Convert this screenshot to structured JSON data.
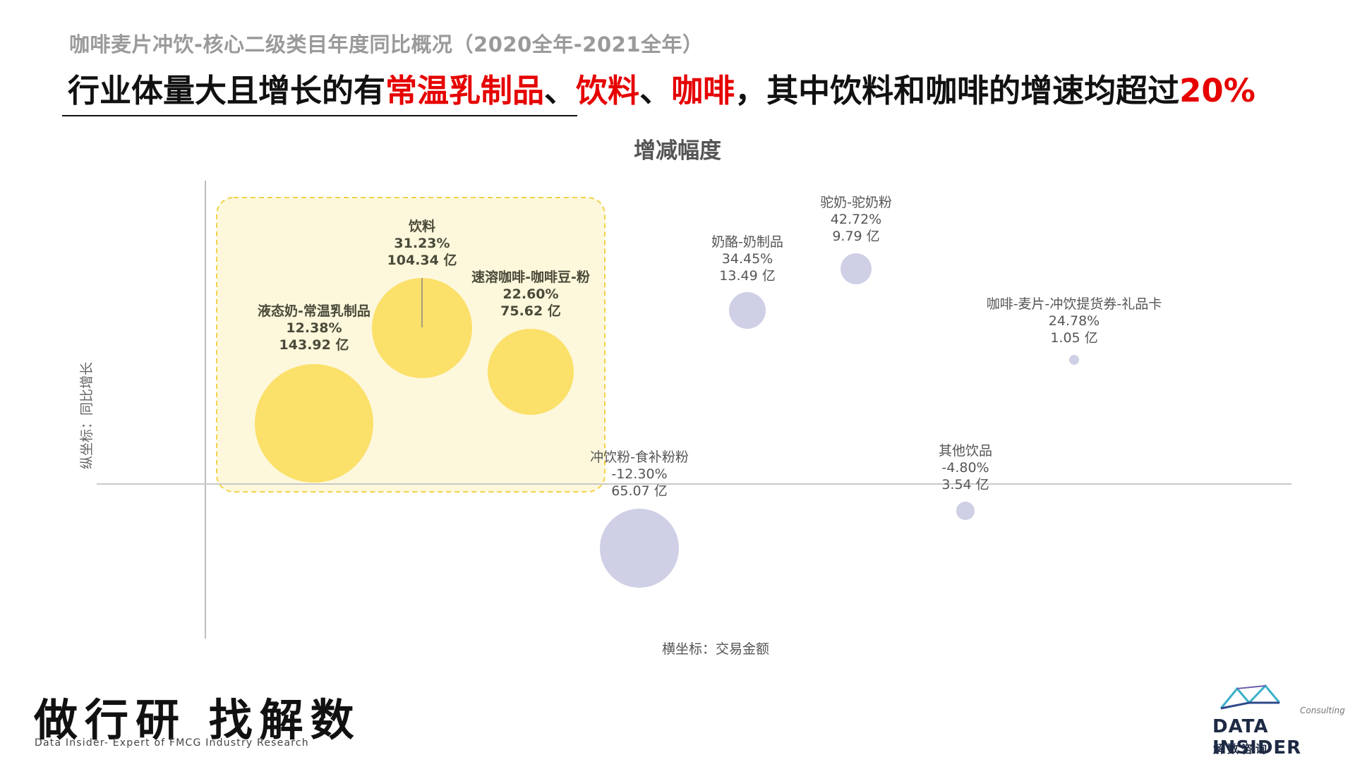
{
  "header": {
    "subtitle": "咖啡麦片冲饮-核心二级类目年度同比概况（2020全年-2021全年）",
    "headline_parts": [
      {
        "text": "行业体量大且增长的有",
        "highlight": false
      },
      {
        "text": "常温乳制品",
        "highlight": true
      },
      {
        "text": "、",
        "highlight": false
      },
      {
        "text": "饮料",
        "highlight": true
      },
      {
        "text": "、",
        "highlight": false
      },
      {
        "text": "咖啡",
        "highlight": true
      },
      {
        "text": "，其中饮料和咖啡的增速均超过",
        "highlight": false
      },
      {
        "text": "20%",
        "highlight": true
      }
    ]
  },
  "colors": {
    "highlight_text": "#e60000",
    "bubble_highlight": "#fbe06a",
    "bubble_other": "#cfcfe6",
    "highlight_box_fill": "#fdf8dc",
    "highlight_box_border": "#f2d24a"
  },
  "chart_data": {
    "type": "scatter",
    "title": "增减幅度",
    "xlabel": "横坐标：交易金额",
    "ylabel": "纵坐标：同比增长",
    "grid": false,
    "points": [
      {
        "name": "液态奶-常温乳制品",
        "growth": "12.38%",
        "amount": "143.92 亿",
        "growth_value": 12.38,
        "amount_value": 143.92,
        "highlight": true
      },
      {
        "name": "饮料",
        "growth": "31.23%",
        "amount": "104.34 亿",
        "growth_value": 31.23,
        "amount_value": 104.34,
        "highlight": true
      },
      {
        "name": "速溶咖啡-咖啡豆-粉",
        "growth": "22.60%",
        "amount": "75.62 亿",
        "growth_value": 22.6,
        "amount_value": 75.62,
        "highlight": true
      },
      {
        "name": "奶酪-奶制品",
        "growth": "34.45%",
        "amount": "13.49 亿",
        "growth_value": 34.45,
        "amount_value": 13.49,
        "highlight": false
      },
      {
        "name": "驼奶-驼奶粉",
        "growth": "42.72%",
        "amount": "9.79 亿",
        "growth_value": 42.72,
        "amount_value": 9.79,
        "highlight": false
      },
      {
        "name": "咖啡-麦片-冲饮提货券-礼品卡",
        "growth": "24.78%",
        "amount": "1.05 亿",
        "growth_value": 24.78,
        "amount_value": 1.05,
        "highlight": false
      },
      {
        "name": "冲饮粉-食补粉粉",
        "growth": "-12.30%",
        "amount": "65.07 亿",
        "growth_value": -12.3,
        "amount_value": 65.07,
        "highlight": false
      },
      {
        "name": "其他饮品",
        "growth": "-4.80%",
        "amount": "3.54 亿",
        "growth_value": -4.8,
        "amount_value": 3.54,
        "highlight": false
      }
    ]
  },
  "footer": {
    "slogan": "做行研 找解数",
    "tagline": "Data Insider- Expert of FMCG Industry Research",
    "logo_consulting": "Consulting",
    "logo_name": "DATA INSIDER",
    "logo_cn": "解数咨询"
  }
}
